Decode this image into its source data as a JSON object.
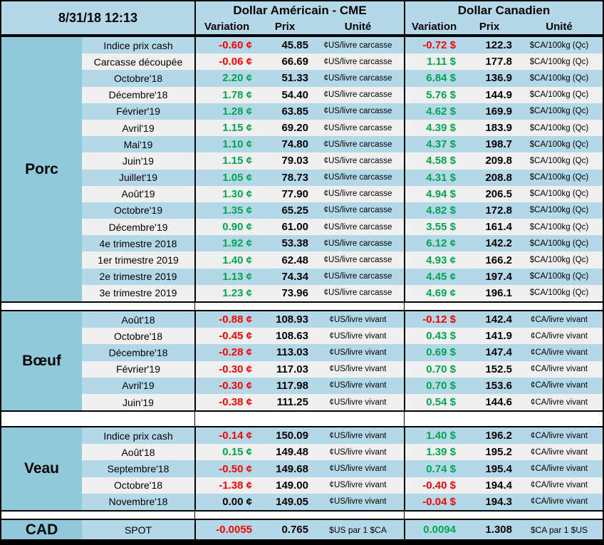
{
  "table": {
    "timestamp": "8/31/18 12:13",
    "us_group": {
      "title": "Dollar Américain - CME",
      "columns": [
        "Variation",
        "Prix",
        "Unité"
      ]
    },
    "ca_group": {
      "title": "Dollar Canadien",
      "columns": [
        "Variation",
        "Prix",
        "Unité"
      ]
    },
    "colors": {
      "negative": "#FF0000",
      "positive": "#00A64F",
      "zero": "#000000",
      "stripe_blue": "#B3D8E7",
      "stripe_gray": "#F0F0F0",
      "category_teal": "#90C9DA",
      "border": "#000000"
    },
    "sections": [
      {
        "category": "Porc",
        "rows": [
          {
            "label": "Indice prix cash",
            "us_variation": "-0.60 ¢",
            "us_price": "45.85",
            "us_unit": "¢US/livre carcasse",
            "ca_variation": "-0.72 $",
            "ca_price": "122.3",
            "ca_unit": "$CA/100kg (Qc)"
          },
          {
            "label": "Carcasse découpée",
            "us_variation": "-0.06 ¢",
            "us_price": "66.69",
            "us_unit": "¢US/livre carcasse",
            "ca_variation": "1.11 $",
            "ca_price": "177.8",
            "ca_unit": "$CA/100kg (Qc)"
          },
          {
            "label": "Octobre'18",
            "us_variation": "2.20 ¢",
            "us_price": "51.33",
            "us_unit": "¢US/livre carcasse",
            "ca_variation": "6.84 $",
            "ca_price": "136.9",
            "ca_unit": "$CA/100kg (Qc)"
          },
          {
            "label": "Décembre'18",
            "us_variation": "1.78 ¢",
            "us_price": "54.40",
            "us_unit": "¢US/livre carcasse",
            "ca_variation": "5.76 $",
            "ca_price": "144.9",
            "ca_unit": "$CA/100kg (Qc)"
          },
          {
            "label": "Février'19",
            "us_variation": "1.28 ¢",
            "us_price": "63.85",
            "us_unit": "¢US/livre carcasse",
            "ca_variation": "4.62 $",
            "ca_price": "169.9",
            "ca_unit": "$CA/100kg (Qc)"
          },
          {
            "label": "Avril'19",
            "us_variation": "1.15 ¢",
            "us_price": "69.20",
            "us_unit": "¢US/livre carcasse",
            "ca_variation": "4.39 $",
            "ca_price": "183.9",
            "ca_unit": "$CA/100kg (Qc)"
          },
          {
            "label": "Mai'19",
            "us_variation": "1.10 ¢",
            "us_price": "74.80",
            "us_unit": "¢US/livre carcasse",
            "ca_variation": "4.37 $",
            "ca_price": "198.7",
            "ca_unit": "$CA/100kg (Qc)"
          },
          {
            "label": "Juin'19",
            "us_variation": "1.15 ¢",
            "us_price": "79.03",
            "us_unit": "¢US/livre carcasse",
            "ca_variation": "4.58 $",
            "ca_price": "209.8",
            "ca_unit": "$CA/100kg (Qc)"
          },
          {
            "label": "Juillet'19",
            "us_variation": "1.05 ¢",
            "us_price": "78.73",
            "us_unit": "¢US/livre carcasse",
            "ca_variation": "4.31 $",
            "ca_price": "208.8",
            "ca_unit": "$CA/100kg (Qc)"
          },
          {
            "label": "Août'19",
            "us_variation": "1.30 ¢",
            "us_price": "77.90",
            "us_unit": "¢US/livre carcasse",
            "ca_variation": "4.94 $",
            "ca_price": "206.5",
            "ca_unit": "$CA/100kg (Qc)"
          },
          {
            "label": "Octobre'19",
            "us_variation": "1.35 ¢",
            "us_price": "65.25",
            "us_unit": "¢US/livre carcasse",
            "ca_variation": "4.82 $",
            "ca_price": "172.8",
            "ca_unit": "$CA/100kg (Qc)"
          },
          {
            "label": "Décembre'19",
            "us_variation": "0.90 ¢",
            "us_price": "61.00",
            "us_unit": "¢US/livre carcasse",
            "ca_variation": "3.55 $",
            "ca_price": "161.4",
            "ca_unit": "$CA/100kg (Qc)"
          },
          {
            "label": "4e trimestre 2018",
            "us_variation": "1.92 ¢",
            "us_price": "53.38",
            "us_unit": "¢US/livre carcasse",
            "ca_variation": "6.12 ¢",
            "ca_price": "142.2",
            "ca_unit": "$CA/100kg (Qc)"
          },
          {
            "label": "1er trimestre 2019",
            "us_variation": "1.40 ¢",
            "us_price": "62.48",
            "us_unit": "¢US/livre carcasse",
            "ca_variation": "4.93 ¢",
            "ca_price": "166.2",
            "ca_unit": "$CA/100kg (Qc)"
          },
          {
            "label": "2e trimestre 2019",
            "us_variation": "1.13 ¢",
            "us_price": "74.34",
            "us_unit": "¢US/livre carcasse",
            "ca_variation": "4.45 ¢",
            "ca_price": "197.4",
            "ca_unit": "$CA/100kg (Qc)"
          },
          {
            "label": "3e trimestre 2019",
            "us_variation": "1.23 ¢",
            "us_price": "73.96",
            "us_unit": "¢US/livre carcasse",
            "ca_variation": "4.69 ¢",
            "ca_price": "196.1",
            "ca_unit": "$CA/100kg (Qc)"
          }
        ]
      },
      {
        "category": "Bœuf",
        "rows": [
          {
            "label": "Août'18",
            "us_variation": "-0.88 ¢",
            "us_price": "108.93",
            "us_unit": "¢US/livre vivant",
            "ca_variation": "-0.12 $",
            "ca_price": "142.4",
            "ca_unit": "¢CA/livre vivant"
          },
          {
            "label": "Octobre'18",
            "us_variation": "-0.45 ¢",
            "us_price": "108.63",
            "us_unit": "¢US/livre vivant",
            "ca_variation": "0.43 $",
            "ca_price": "141.9",
            "ca_unit": "¢CA/livre vivant"
          },
          {
            "label": "Décembre'18",
            "us_variation": "-0.28 ¢",
            "us_price": "113.03",
            "us_unit": "¢US/livre vivant",
            "ca_variation": "0.69 $",
            "ca_price": "147.4",
            "ca_unit": "¢CA/livre vivant"
          },
          {
            "label": "Février'19",
            "us_variation": "-0.30 ¢",
            "us_price": "117.03",
            "us_unit": "¢US/livre vivant",
            "ca_variation": "0.70 $",
            "ca_price": "152.5",
            "ca_unit": "¢CA/livre vivant"
          },
          {
            "label": "Avril'19",
            "us_variation": "-0.30 ¢",
            "us_price": "117.98",
            "us_unit": "¢US/livre vivant",
            "ca_variation": "0.70 $",
            "ca_price": "153.6",
            "ca_unit": "¢CA/livre vivant"
          },
          {
            "label": "Juin'19",
            "us_variation": "-0.38 ¢",
            "us_price": "111.25",
            "us_unit": "¢US/livre vivant",
            "ca_variation": "0.54 $",
            "ca_price": "144.6",
            "ca_unit": "¢CA/livre vivant"
          }
        ]
      },
      {
        "category": "Veau",
        "rows": [
          {
            "label": "Indice prix cash",
            "us_variation": "-0.14 ¢",
            "us_price": "150.09",
            "us_unit": "¢US/livre vivant",
            "ca_variation": "1.40 $",
            "ca_price": "196.2",
            "ca_unit": "¢CA/livre vivant"
          },
          {
            "label": "Août'18",
            "us_variation": "0.15 ¢",
            "us_price": "149.48",
            "us_unit": "¢US/livre vivant",
            "ca_variation": "1.39 $",
            "ca_price": "195.2",
            "ca_unit": "¢CA/livre vivant"
          },
          {
            "label": "Septembre'18",
            "us_variation": "-0.50 ¢",
            "us_price": "149.68",
            "us_unit": "¢US/livre vivant",
            "ca_variation": "0.74 $",
            "ca_price": "195.4",
            "ca_unit": "¢CA/livre vivant"
          },
          {
            "label": "Octobre'18",
            "us_variation": "-1.38 ¢",
            "us_price": "149.00",
            "us_unit": "¢US/livre vivant",
            "ca_variation": "-0.40 $",
            "ca_price": "194.4",
            "ca_unit": "¢CA/livre vivant"
          },
          {
            "label": "Novembre'18",
            "us_variation": "0.00 ¢",
            "us_price": "149.05",
            "us_unit": "¢US/livre vivant",
            "ca_variation": "-0.04 $",
            "ca_price": "194.3",
            "ca_unit": "¢CA/livre vivant"
          }
        ]
      }
    ],
    "cad_row": {
      "category": "CAD",
      "label": "SPOT",
      "us_variation": "-0.0055",
      "us_price": "0.765",
      "us_unit": "$US par 1 $CA",
      "ca_variation": "0.0094",
      "ca_price": "1.308",
      "ca_unit": "$CA par 1 $US"
    }
  }
}
